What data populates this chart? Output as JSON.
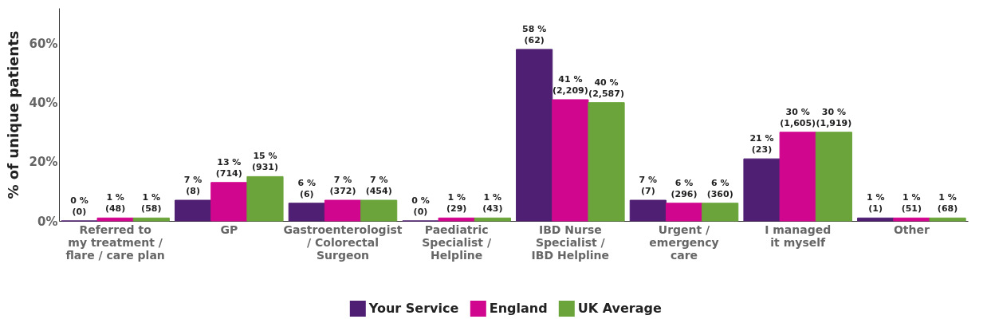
{
  "chart_data": {
    "type": "bar",
    "ylabel": "% of unique patients",
    "categories": [
      "Referred to\nmy treatment /\nflare / care plan",
      "GP",
      "Gastroenterologist\n/ Colorectal\nSurgeon",
      "Paediatric\nSpecialist /\nHelpline",
      "IBD Nurse\nSpecialist /\nIBD Helpline",
      "Urgent /\nemergency\ncare",
      "I managed\nit myself",
      "Other"
    ],
    "series": [
      {
        "name": "Your Service",
        "color": "#4f1f73",
        "values": [
          0,
          7,
          6,
          0,
          58,
          7,
          21,
          1
        ],
        "value_labels": [
          "0 %\n(0)",
          "7 %\n(8)",
          "6 %\n(6)",
          "0 %\n(0)",
          "58 %\n(62)",
          "7 %\n(7)",
          "21 %\n(23)",
          "1 %\n(1)"
        ]
      },
      {
        "name": "England",
        "color": "#d1068f",
        "values": [
          1,
          13,
          7,
          1,
          41,
          6,
          30,
          1
        ],
        "value_labels": [
          "1 %\n(48)",
          "13 %\n(714)",
          "7 %\n(372)",
          "1 %\n(29)",
          "41 %\n(2,209)",
          "6 %\n(296)",
          "30 %\n(1,605)",
          "1 %\n(51)"
        ]
      },
      {
        "name": "UK Average",
        "color": "#6aa43a",
        "values": [
          1,
          15,
          7,
          1,
          40,
          6,
          30,
          1
        ],
        "value_labels": [
          "1 %\n(58)",
          "15 %\n(931)",
          "7 %\n(454)",
          "1 %\n(43)",
          "40 %\n(2,587)",
          "6 %\n(360)",
          "30 %\n(1,919)",
          "1 %\n(68)"
        ]
      }
    ],
    "ylim": [
      0,
      72
    ],
    "yticks": [
      {
        "value": 0,
        "label": "0%"
      },
      {
        "value": 20,
        "label": "20%"
      },
      {
        "value": 40,
        "label": "40%"
      },
      {
        "value": 60,
        "label": "60%"
      }
    ],
    "legend": "bottom"
  }
}
